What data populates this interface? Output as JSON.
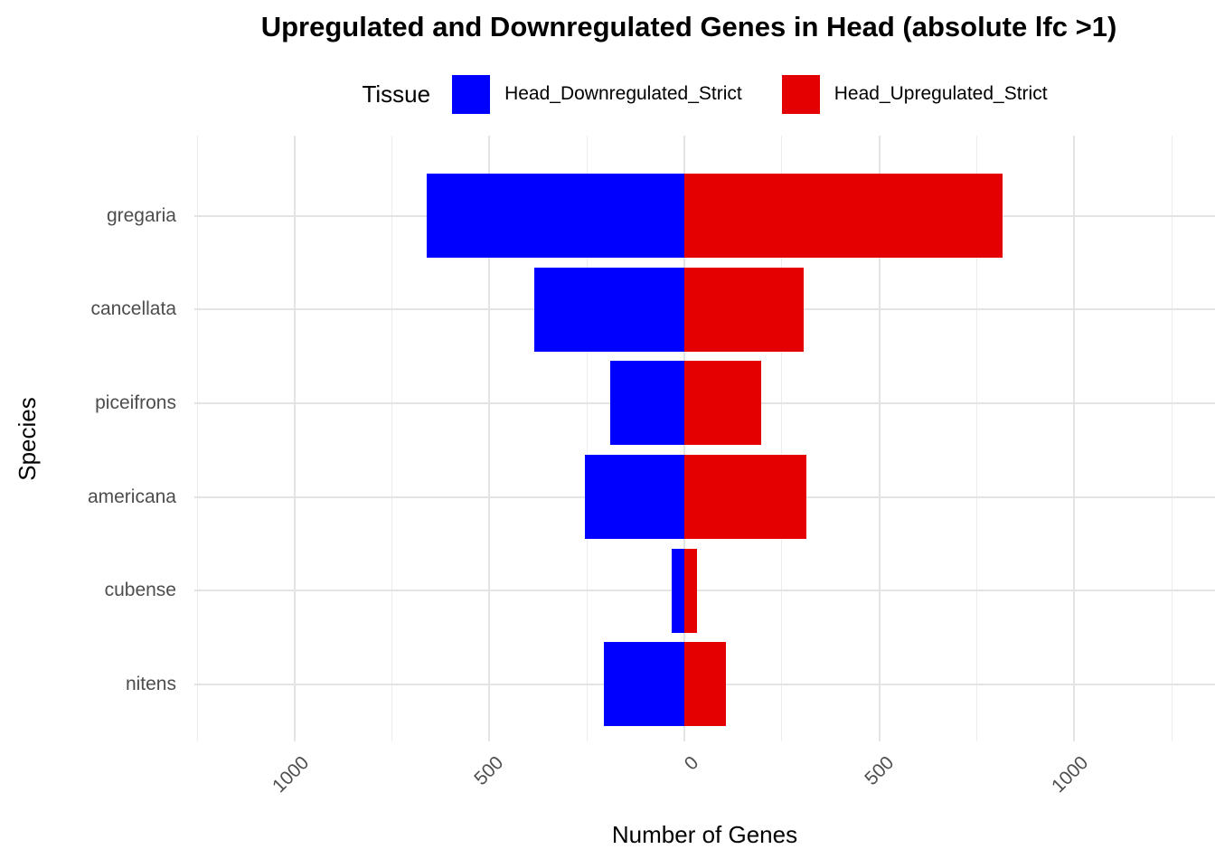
{
  "title": "Upregulated and Downregulated Genes in Head (absolute lfc >1)",
  "legend": {
    "title": "Tissue",
    "items": [
      {
        "label": "Head_Downregulated_Strict",
        "color": "#0000FF"
      },
      {
        "label": "Head_Upregulated_Strict",
        "color": "#E40000"
      }
    ]
  },
  "chart_data": {
    "type": "bar",
    "variant": "diverging-horizontal",
    "title": "Upregulated and Downregulated Genes in Head (absolute lfc >1)",
    "xlabel": "Number of Genes",
    "ylabel": "Species",
    "legend_title": "Tissue",
    "legend_position": "top",
    "grid": true,
    "categories": [
      "gregaria",
      "cancellata",
      "piceifrons",
      "americana",
      "cubense",
      "nitens"
    ],
    "series": [
      {
        "name": "Head_Downregulated_Strict",
        "color": "#0000FF",
        "sign": -1,
        "values": [
          660,
          385,
          190,
          256,
          32,
          206
        ]
      },
      {
        "name": "Head_Upregulated_Strict",
        "color": "#E40000",
        "sign": 1,
        "values": [
          816,
          305,
          196,
          312,
          33,
          106
        ]
      }
    ],
    "x_ticks": [
      {
        "value": -1000,
        "label": "1000"
      },
      {
        "value": -500,
        "label": "500"
      },
      {
        "value": 0,
        "label": "0"
      },
      {
        "value": 500,
        "label": "500"
      },
      {
        "value": 1000,
        "label": "1000"
      }
    ],
    "minor_tick_step": 250,
    "minor_tick_range": [
      -1250,
      1250
    ],
    "xlim": [
      -1257,
      1361
    ]
  },
  "colors": {
    "grid_major": "#E4E4E4",
    "grid_minor": "#ECECEC",
    "axis_text": "#4D4D4D",
    "text": "#000000",
    "background": "#FFFFFF"
  }
}
